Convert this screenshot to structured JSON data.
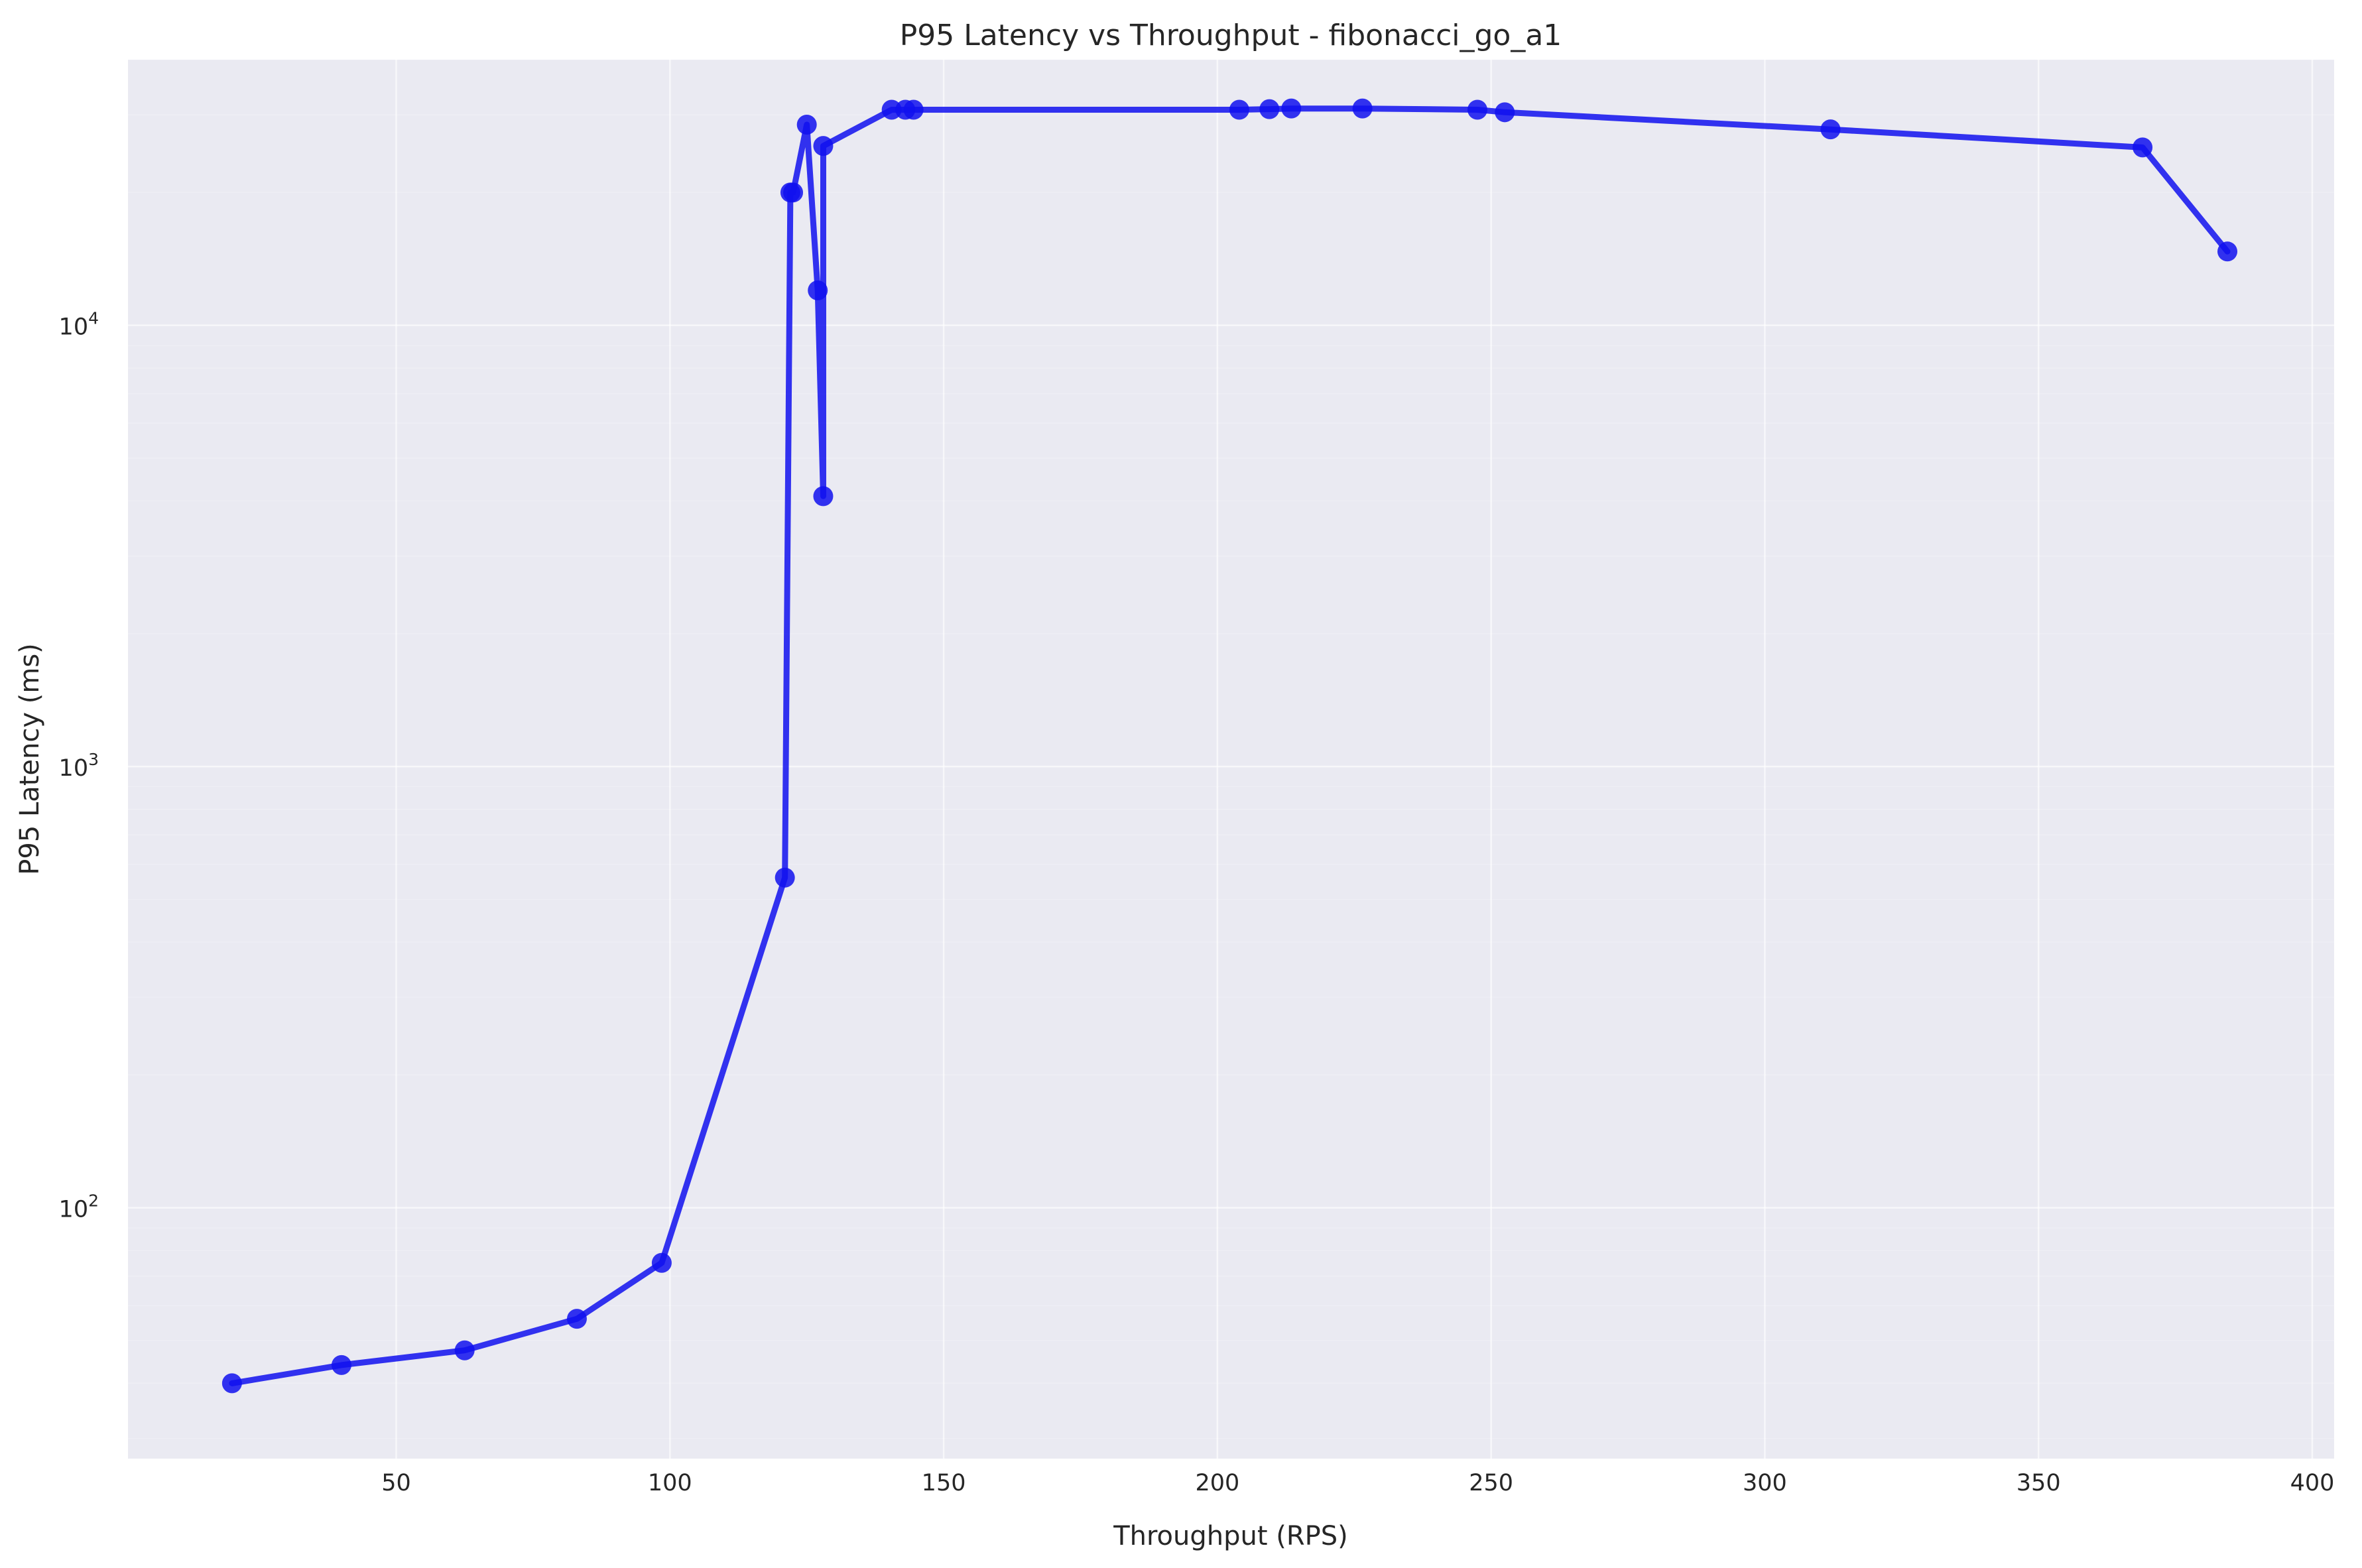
{
  "chart_data": {
    "type": "line",
    "title": "P95 Latency vs Throughput - fibonacci_go_a1",
    "xlabel": "Throughput (RPS)",
    "ylabel": "P95 Latency (ms)",
    "xlim": [
      1,
      404
    ],
    "ylim": [
      27,
      40000
    ],
    "yscale": "log",
    "grid": true,
    "x_ticks": [
      50,
      100,
      150,
      200,
      250,
      300,
      350,
      400
    ],
    "y_ticks": [
      {
        "base": "10",
        "exp": "2",
        "value": 100
      },
      {
        "base": "10",
        "exp": "3",
        "value": 1000
      },
      {
        "base": "10",
        "exp": "4",
        "value": 10000
      }
    ],
    "colors": {
      "series": "#1010ee",
      "plot_bg": "#eaeaf2",
      "grid": "#ffffff"
    },
    "series": [
      {
        "marker": "circle",
        "points": [
          {
            "x": 20,
            "y": 40
          },
          {
            "x": 40,
            "y": 44
          },
          {
            "x": 62.5,
            "y": 47.5
          },
          {
            "x": 83,
            "y": 56
          },
          {
            "x": 98.5,
            "y": 75
          },
          {
            "x": 121,
            "y": 560
          },
          {
            "x": 122,
            "y": 20000
          },
          {
            "x": 122.5,
            "y": 20000
          },
          {
            "x": 125,
            "y": 28500
          },
          {
            "x": 127,
            "y": 12000
          },
          {
            "x": 128,
            "y": 4100
          },
          {
            "x": 128,
            "y": 25500
          },
          {
            "x": 140.5,
            "y": 30800
          },
          {
            "x": 143,
            "y": 30800
          },
          {
            "x": 144.5,
            "y": 30800
          },
          {
            "x": 204,
            "y": 30800
          },
          {
            "x": 209.5,
            "y": 30900
          },
          {
            "x": 213.5,
            "y": 31000
          },
          {
            "x": 226.5,
            "y": 31000
          },
          {
            "x": 247.5,
            "y": 30800
          },
          {
            "x": 252.5,
            "y": 30400
          },
          {
            "x": 312,
            "y": 27800
          },
          {
            "x": 369,
            "y": 25300
          },
          {
            "x": 384.5,
            "y": 14700
          }
        ]
      }
    ]
  }
}
